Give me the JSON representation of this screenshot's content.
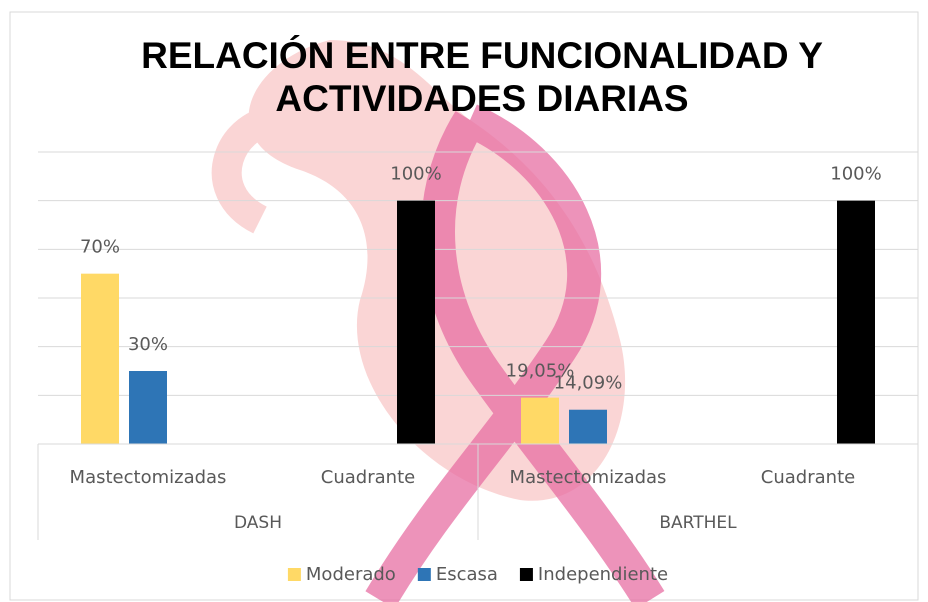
{
  "chart_data": {
    "type": "bar",
    "title": "RELACIÓN ENTRE FUNCIONALIDAD Y ACTIVIDADES DIARIAS",
    "categories": [
      "Mastectomizadas",
      "Cuadrante",
      "Mastectomizadas",
      "Cuadrante"
    ],
    "category_groups": [
      "DASH",
      "BARTHEL"
    ],
    "series": [
      {
        "name": "Moderado",
        "color": "#ffd966",
        "values": [
          70,
          null,
          19.05,
          null
        ],
        "value_labels": [
          "70%",
          null,
          "19,05%",
          null
        ]
      },
      {
        "name": "Escasa",
        "color": "#2e75b6",
        "values": [
          30,
          null,
          14.09,
          null
        ],
        "value_labels": [
          "30%",
          null,
          "14,09%",
          null
        ]
      },
      {
        "name": "Independiente",
        "color": "#000000",
        "values": [
          null,
          100,
          null,
          100
        ],
        "value_labels": [
          null,
          "100%",
          null,
          "100%"
        ]
      }
    ],
    "ylim": [
      0,
      120
    ],
    "yticks": [
      0,
      20,
      40,
      60,
      80,
      100,
      120
    ],
    "grid": true,
    "legend": "bottom"
  }
}
